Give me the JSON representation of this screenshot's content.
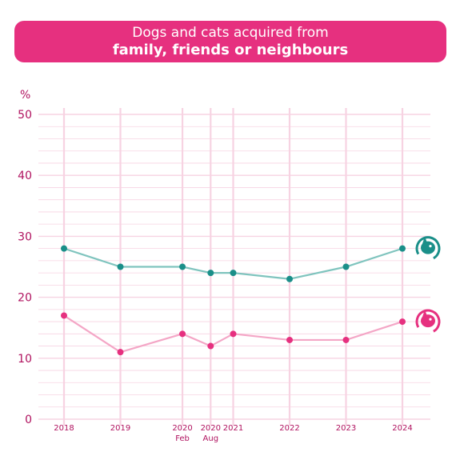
{
  "title": {
    "line1": "Dogs and cats acquired from",
    "line2": "family, friends or neighbours"
  },
  "colors": {
    "banner": "#e6307f",
    "dogs": "#1a8f89",
    "dogs_line": "#7fc4be",
    "cats": "#e6307f",
    "cats_line": "#f4a6c6",
    "grid": "#f7d3e2",
    "axis_text": "#b0125f"
  },
  "icons": {
    "dogs": "dog-icon",
    "cats": "cat-icon"
  },
  "chart_data": {
    "type": "line",
    "ylabel": "%",
    "ylim": [
      0,
      50
    ],
    "yticks": [
      0,
      10,
      20,
      30,
      40,
      50
    ],
    "grid": true,
    "categories": [
      {
        "label": "2018",
        "sub": ""
      },
      {
        "label": "2019",
        "sub": ""
      },
      {
        "label": "2020",
        "sub": "Feb"
      },
      {
        "label": "2020",
        "sub": "Aug"
      },
      {
        "label": "2021",
        "sub": ""
      },
      {
        "label": "2022",
        "sub": ""
      },
      {
        "label": "2023",
        "sub": ""
      },
      {
        "label": "2024",
        "sub": ""
      }
    ],
    "x": [
      2018,
      2019,
      2020.1,
      2020.6,
      2021,
      2022,
      2023,
      2024
    ],
    "series": [
      {
        "key": "dogs",
        "values": [
          28,
          25,
          25,
          24,
          24,
          23,
          25,
          28
        ]
      },
      {
        "key": "cats",
        "values": [
          17,
          11,
          14,
          12,
          14,
          13,
          13,
          16
        ]
      }
    ]
  }
}
